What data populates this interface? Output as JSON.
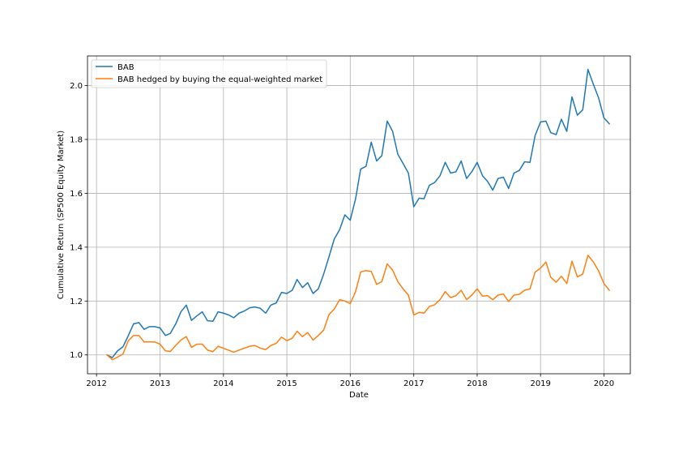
{
  "chart_data": {
    "type": "line",
    "xlabel": "Date",
    "ylabel": "Cumulative Return (SP500 Equity Market)",
    "x_axis_type": "date",
    "xlim": [
      "2011-11-10",
      "2020-06-01"
    ],
    "ylim": [
      0.93,
      2.11
    ],
    "xticks": [
      {
        "date": "2012-01-01",
        "label": "2012"
      },
      {
        "date": "2013-01-01",
        "label": "2013"
      },
      {
        "date": "2014-01-01",
        "label": "2014"
      },
      {
        "date": "2015-01-01",
        "label": "2015"
      },
      {
        "date": "2016-01-01",
        "label": "2016"
      },
      {
        "date": "2017-01-01",
        "label": "2017"
      },
      {
        "date": "2018-01-01",
        "label": "2018"
      },
      {
        "date": "2019-01-01",
        "label": "2019"
      },
      {
        "date": "2020-01-01",
        "label": "2020"
      }
    ],
    "yticks": [
      {
        "value": 1.0,
        "label": "1.0"
      },
      {
        "value": 1.2,
        "label": "1.2"
      },
      {
        "value": 1.4,
        "label": "1.4"
      },
      {
        "value": 1.6,
        "label": "1.6"
      },
      {
        "value": 1.8,
        "label": "1.8"
      },
      {
        "value": 2.0,
        "label": "2.0"
      }
    ],
    "grid": true,
    "legend_position": "top-left",
    "x": [
      "2012-03",
      "2012-04",
      "2012-05",
      "2012-06",
      "2012-07",
      "2012-08",
      "2012-09",
      "2012-10",
      "2012-11",
      "2012-12",
      "2013-01",
      "2013-02",
      "2013-03",
      "2013-04",
      "2013-05",
      "2013-06",
      "2013-07",
      "2013-08",
      "2013-09",
      "2013-10",
      "2013-11",
      "2013-12",
      "2014-01",
      "2014-02",
      "2014-03",
      "2014-04",
      "2014-05",
      "2014-06",
      "2014-07",
      "2014-08",
      "2014-09",
      "2014-10",
      "2014-11",
      "2014-12",
      "2015-01",
      "2015-02",
      "2015-03",
      "2015-04",
      "2015-05",
      "2015-06",
      "2015-07",
      "2015-08",
      "2015-09",
      "2015-10",
      "2015-11",
      "2015-12",
      "2016-01",
      "2016-02",
      "2016-03",
      "2016-04",
      "2016-05",
      "2016-06",
      "2016-07",
      "2016-08",
      "2016-09",
      "2016-10",
      "2016-11",
      "2016-12",
      "2017-01",
      "2017-02",
      "2017-03",
      "2017-04",
      "2017-05",
      "2017-06",
      "2017-07",
      "2017-08",
      "2017-09",
      "2017-10",
      "2017-11",
      "2017-12",
      "2018-01",
      "2018-02",
      "2018-03",
      "2018-04",
      "2018-05",
      "2018-06",
      "2018-07",
      "2018-08",
      "2018-09",
      "2018-10",
      "2018-11",
      "2018-12",
      "2019-01",
      "2019-02",
      "2019-03",
      "2019-04",
      "2019-05",
      "2019-06",
      "2019-07",
      "2019-08",
      "2019-09",
      "2019-10",
      "2019-11",
      "2019-12",
      "2020-01",
      "2020-02"
    ],
    "series": [
      {
        "name": "BAB",
        "color": "#1f77b4",
        "values": [
          1.0,
          0.99,
          1.015,
          1.03,
          1.07,
          1.115,
          1.12,
          1.095,
          1.105,
          1.105,
          1.1,
          1.072,
          1.08,
          1.115,
          1.16,
          1.185,
          1.128,
          1.145,
          1.16,
          1.127,
          1.125,
          1.16,
          1.155,
          1.148,
          1.138,
          1.155,
          1.163,
          1.175,
          1.178,
          1.173,
          1.155,
          1.185,
          1.193,
          1.232,
          1.228,
          1.24,
          1.28,
          1.25,
          1.268,
          1.228,
          1.245,
          1.3,
          1.365,
          1.43,
          1.465,
          1.52,
          1.5,
          1.58,
          1.69,
          1.7,
          1.79,
          1.72,
          1.74,
          1.868,
          1.83,
          1.745,
          1.71,
          1.675,
          1.55,
          1.582,
          1.58,
          1.63,
          1.64,
          1.665,
          1.715,
          1.675,
          1.68,
          1.72,
          1.655,
          1.68,
          1.715,
          1.665,
          1.645,
          1.612,
          1.655,
          1.66,
          1.618,
          1.675,
          1.685,
          1.717,
          1.715,
          1.815,
          1.865,
          1.868,
          1.825,
          1.818,
          1.875,
          1.83,
          1.958,
          1.89,
          1.91,
          2.06,
          2.005,
          1.955,
          1.88,
          1.858
        ]
      },
      {
        "name": "BAB hedged by buying the equal-weighted market",
        "color": "#ff7f0e",
        "values": [
          1.0,
          0.982,
          0.992,
          1.003,
          1.052,
          1.072,
          1.072,
          1.048,
          1.048,
          1.048,
          1.04,
          1.015,
          1.013,
          1.035,
          1.055,
          1.068,
          1.028,
          1.04,
          1.04,
          1.018,
          1.012,
          1.032,
          1.025,
          1.017,
          1.01,
          1.018,
          1.025,
          1.032,
          1.035,
          1.025,
          1.02,
          1.035,
          1.043,
          1.066,
          1.053,
          1.062,
          1.088,
          1.068,
          1.083,
          1.055,
          1.072,
          1.092,
          1.15,
          1.17,
          1.205,
          1.2,
          1.19,
          1.235,
          1.308,
          1.313,
          1.31,
          1.262,
          1.272,
          1.338,
          1.315,
          1.272,
          1.245,
          1.222,
          1.148,
          1.158,
          1.155,
          1.18,
          1.186,
          1.205,
          1.235,
          1.213,
          1.22,
          1.24,
          1.205,
          1.222,
          1.245,
          1.218,
          1.22,
          1.205,
          1.222,
          1.226,
          1.198,
          1.222,
          1.225,
          1.24,
          1.245,
          1.308,
          1.322,
          1.345,
          1.288,
          1.27,
          1.292,
          1.265,
          1.348,
          1.29,
          1.3,
          1.37,
          1.345,
          1.312,
          1.265,
          1.24
        ]
      }
    ]
  }
}
